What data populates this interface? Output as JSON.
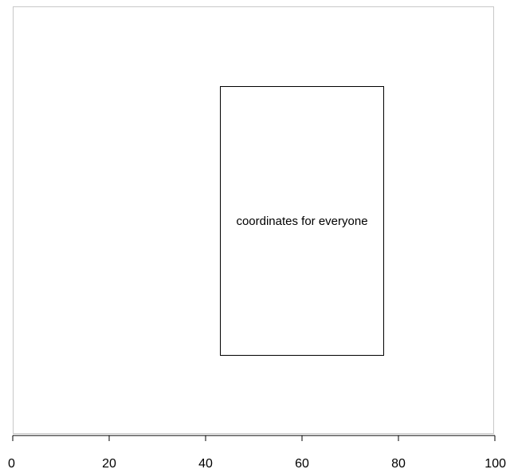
{
  "chart_data": {
    "type": "diagram",
    "x_axis": {
      "range": [
        0,
        100
      ],
      "ticks": [
        0,
        20,
        40,
        60,
        80,
        100
      ],
      "tick_labels": [
        "0",
        "20",
        "40",
        "60",
        "80",
        "100"
      ]
    },
    "annotation": {
      "text": "coordinates for everyone",
      "x_range": [
        43,
        77
      ]
    },
    "grid": false,
    "colors": {
      "frame": "#c8c8c8",
      "box": "#000000",
      "text": "#000000"
    }
  }
}
